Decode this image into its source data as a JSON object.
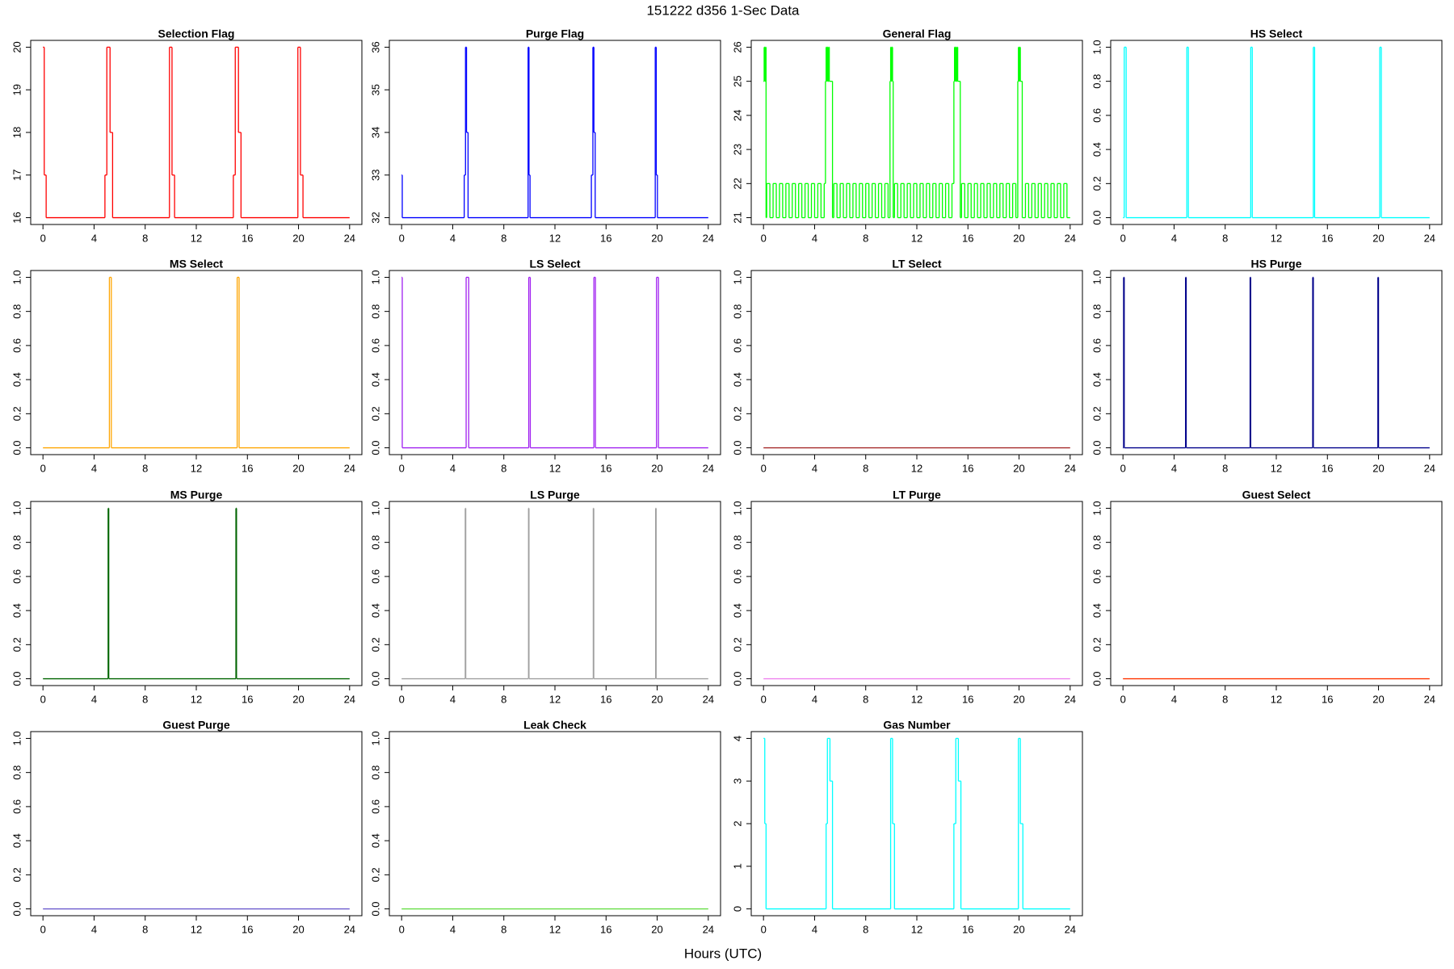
{
  "title": "151222   d356   1-Sec Data",
  "x_label": "Hours (UTC)",
  "chart_data": [
    {
      "type": "step",
      "title": "Selection Flag",
      "color": "#ff0000",
      "xlim": [
        -0.96,
        24.96
      ],
      "xticks": [
        0,
        4,
        8,
        12,
        16,
        20,
        24
      ],
      "ylim": [
        15.84,
        20.16
      ],
      "yticks": [
        16,
        17,
        18,
        19,
        20
      ],
      "x": [
        0,
        0.1,
        0.25,
        4.85,
        5.0,
        5.25,
        5.45,
        9.9,
        10.1,
        10.3,
        14.9,
        15.05,
        15.3,
        15.5,
        19.95,
        20.15,
        20.35,
        24
      ],
      "values": [
        20,
        17,
        16,
        17,
        20,
        18,
        16,
        20,
        17,
        16,
        17,
        20,
        18,
        16,
        20,
        17,
        16,
        16
      ]
    },
    {
      "type": "step",
      "title": "Purge Flag",
      "color": "#0000ff",
      "xlim": [
        -0.96,
        24.96
      ],
      "xticks": [
        0,
        4,
        8,
        12,
        16,
        20,
        24
      ],
      "ylim": [
        31.84,
        36.16
      ],
      "yticks": [
        32,
        33,
        34,
        35,
        36
      ],
      "x": [
        0,
        0.05,
        4.9,
        5.0,
        5.08,
        5.2,
        9.9,
        9.97,
        10.05,
        14.85,
        14.97,
        15.05,
        15.15,
        19.85,
        19.93,
        20.02,
        24
      ],
      "values": [
        33,
        32,
        33,
        36,
        34,
        32,
        36,
        33,
        32,
        33,
        36,
        34,
        32,
        36,
        33,
        32,
        32
      ]
    },
    {
      "type": "step",
      "title": "General Flag",
      "color": "#00ff00",
      "xlim": [
        -0.96,
        24.96
      ],
      "xticks": [
        0,
        4,
        8,
        12,
        16,
        20,
        24
      ],
      "ylim": [
        20.8,
        26.2
      ],
      "yticks": [
        21,
        22,
        23,
        24,
        25,
        26
      ],
      "x": [
        0,
        0.05,
        0.1,
        0.15,
        0.2,
        0.25,
        0.5,
        0.75,
        1,
        1.25,
        1.5,
        1.75,
        2,
        2.25,
        2.5,
        2.75,
        3,
        3.25,
        3.5,
        3.75,
        4,
        4.25,
        4.5,
        4.75,
        4.85,
        4.9,
        4.95,
        5.0,
        5.05,
        5.1,
        5.15,
        5.4,
        5.5,
        5.75,
        6,
        6.25,
        6.5,
        6.75,
        7,
        7.25,
        7.5,
        7.75,
        8,
        8.25,
        8.5,
        8.75,
        9,
        9.25,
        9.5,
        9.75,
        9.9,
        9.95,
        10,
        10.05,
        10.1,
        10.15,
        10.25,
        10.5,
        10.75,
        11,
        11.25,
        11.5,
        11.75,
        12,
        12.25,
        12.5,
        12.75,
        13,
        13.25,
        13.5,
        13.75,
        14,
        14.25,
        14.5,
        14.75,
        14.9,
        14.95,
        15,
        15.05,
        15.1,
        15.15,
        15.2,
        15.4,
        15.5,
        15.75,
        16,
        16.25,
        16.5,
        16.75,
        17,
        17.25,
        17.5,
        17.75,
        18,
        18.25,
        18.5,
        18.75,
        19,
        19.25,
        19.5,
        19.75,
        19.9,
        19.95,
        20,
        20.05,
        20.1,
        20.25,
        20.5,
        20.75,
        21,
        21.25,
        21.5,
        21.75,
        22,
        22.25,
        22.5,
        22.75,
        23,
        23.25,
        23.5,
        23.75,
        24
      ],
      "values": [
        25,
        26,
        25,
        26,
        21,
        22,
        21,
        22,
        21,
        22,
        21,
        22,
        21,
        22,
        21,
        22,
        21,
        22,
        21,
        22,
        21,
        22,
        21,
        22,
        25,
        26,
        25,
        26,
        25,
        26,
        25,
        21,
        22,
        21,
        22,
        21,
        22,
        21,
        22,
        21,
        22,
        21,
        22,
        21,
        22,
        21,
        22,
        21,
        22,
        21,
        25,
        26,
        25,
        26,
        25,
        21,
        22,
        21,
        22,
        21,
        22,
        21,
        22,
        21,
        22,
        21,
        22,
        21,
        22,
        21,
        22,
        21,
        22,
        21,
        22,
        25,
        26,
        25,
        26,
        25,
        26,
        25,
        21,
        22,
        21,
        22,
        21,
        22,
        21,
        22,
        21,
        22,
        21,
        22,
        21,
        22,
        21,
        22,
        21,
        22,
        21,
        25,
        26,
        25,
        26,
        25,
        21,
        22,
        21,
        22,
        21,
        22,
        21,
        22,
        21,
        22,
        21,
        22,
        21,
        22,
        21,
        21
      ]
    },
    {
      "type": "step",
      "title": "HS Select",
      "color": "#00ffff",
      "xlim": [
        -0.96,
        24.96
      ],
      "xticks": [
        0,
        4,
        8,
        12,
        16,
        20,
        24
      ],
      "ylim": [
        -0.04,
        1.04
      ],
      "yticks": [
        {
          "value": 0,
          "label": "0.0"
        },
        0.2,
        0.4,
        0.6,
        0.8,
        {
          "value": 1,
          "label": "1.0"
        }
      ],
      "x": [
        0,
        0.1,
        0.25,
        5.0,
        5.12,
        10.0,
        10.12,
        14.9,
        15.0,
        20.1,
        20.22,
        24
      ],
      "values": [
        0,
        1,
        0,
        1,
        0,
        1,
        0,
        1,
        0,
        1,
        0,
        0
      ]
    },
    {
      "type": "step",
      "title": "MS Select",
      "color": "#ffa500",
      "xlim": [
        -0.96,
        24.96
      ],
      "xticks": [
        0,
        4,
        8,
        12,
        16,
        20,
        24
      ],
      "ylim": [
        -0.04,
        1.04
      ],
      "yticks": [
        {
          "value": 0,
          "label": "0.0"
        },
        0.2,
        0.4,
        0.6,
        0.8,
        {
          "value": 1,
          "label": "1.0"
        }
      ],
      "x": [
        0,
        5.2,
        5.35,
        15.2,
        15.35,
        24
      ],
      "values": [
        0,
        1,
        0,
        1,
        0,
        0
      ]
    },
    {
      "type": "step",
      "title": "LS Select",
      "color": "#a020f0",
      "xlim": [
        -0.96,
        24.96
      ],
      "xticks": [
        0,
        4,
        8,
        12,
        16,
        20,
        24
      ],
      "ylim": [
        -0.04,
        1.04
      ],
      "yticks": [
        {
          "value": 0,
          "label": "0.0"
        },
        0.2,
        0.4,
        0.6,
        0.8,
        {
          "value": 1,
          "label": "1.0"
        }
      ],
      "x": [
        0,
        0.05,
        5.05,
        5.25,
        9.95,
        10.07,
        15.05,
        15.17,
        19.95,
        20.1,
        24
      ],
      "values": [
        1,
        0,
        1,
        0,
        1,
        0,
        1,
        0,
        1,
        0,
        0
      ]
    },
    {
      "type": "step",
      "title": "LT Select",
      "color": "#a52a2a",
      "xlim": [
        -0.96,
        24.96
      ],
      "xticks": [
        0,
        4,
        8,
        12,
        16,
        20,
        24
      ],
      "ylim": [
        -0.04,
        1.04
      ],
      "yticks": [
        {
          "value": 0,
          "label": "0.0"
        },
        0.2,
        0.4,
        0.6,
        0.8,
        {
          "value": 1,
          "label": "1.0"
        }
      ],
      "x": [
        0,
        24
      ],
      "values": [
        0,
        0
      ]
    },
    {
      "type": "step",
      "title": "HS Purge",
      "color": "#00008b",
      "xlim": [
        -0.96,
        24.96
      ],
      "xticks": [
        0,
        4,
        8,
        12,
        16,
        20,
        24
      ],
      "ylim": [
        -0.04,
        1.04
      ],
      "yticks": [
        {
          "value": 0,
          "label": "0.0"
        },
        0.2,
        0.4,
        0.6,
        0.8,
        {
          "value": 1,
          "label": "1.0"
        }
      ],
      "x": [
        0,
        0.05,
        0.1,
        4.9,
        4.95,
        9.95,
        10.0,
        14.85,
        14.9,
        19.95,
        20.0,
        24
      ],
      "values": [
        0,
        1,
        0,
        1,
        0,
        1,
        0,
        1,
        0,
        1,
        0,
        0
      ]
    },
    {
      "type": "step",
      "title": "MS Purge",
      "color": "#006400",
      "xlim": [
        -0.96,
        24.96
      ],
      "xticks": [
        0,
        4,
        8,
        12,
        16,
        20,
        24
      ],
      "ylim": [
        -0.04,
        1.04
      ],
      "yticks": [
        {
          "value": 0,
          "label": "0.0"
        },
        0.2,
        0.4,
        0.6,
        0.8,
        {
          "value": 1,
          "label": "1.0"
        }
      ],
      "x": [
        0,
        5.1,
        5.15,
        15.1,
        15.15,
        24
      ],
      "values": [
        0,
        1,
        0,
        1,
        0,
        0
      ]
    },
    {
      "type": "step",
      "title": "LS Purge",
      "color": "#a0a0a0",
      "xlim": [
        -0.96,
        24.96
      ],
      "xticks": [
        0,
        4,
        8,
        12,
        16,
        20,
        24
      ],
      "ylim": [
        -0.04,
        1.04
      ],
      "yticks": [
        {
          "value": 0,
          "label": "0.0"
        },
        0.2,
        0.4,
        0.6,
        0.8,
        {
          "value": 1,
          "label": "1.0"
        }
      ],
      "x": [
        0,
        4.98,
        5.02,
        9.93,
        9.97,
        15.0,
        15.04,
        19.88,
        19.92,
        24
      ],
      "values": [
        0,
        1,
        0,
        1,
        0,
        1,
        0,
        1,
        0,
        0
      ]
    },
    {
      "type": "step",
      "title": "LT Purge",
      "color": "#ee82ee",
      "xlim": [
        -0.96,
        24.96
      ],
      "xticks": [
        0,
        4,
        8,
        12,
        16,
        20,
        24
      ],
      "ylim": [
        -0.04,
        1.04
      ],
      "yticks": [
        {
          "value": 0,
          "label": "0.0"
        },
        0.2,
        0.4,
        0.6,
        0.8,
        {
          "value": 1,
          "label": "1.0"
        }
      ],
      "x": [
        0,
        24
      ],
      "values": [
        0,
        0
      ]
    },
    {
      "type": "step",
      "title": "Guest Select",
      "color": "#ff3300",
      "xlim": [
        -0.96,
        24.96
      ],
      "xticks": [
        0,
        4,
        8,
        12,
        16,
        20,
        24
      ],
      "ylim": [
        -0.04,
        1.04
      ],
      "yticks": [
        {
          "value": 0,
          "label": "0.0"
        },
        0.2,
        0.4,
        0.6,
        0.8,
        {
          "value": 1,
          "label": "1.0"
        }
      ],
      "x": [
        0,
        24
      ],
      "values": [
        0,
        0
      ]
    },
    {
      "type": "step",
      "title": "Guest Purge",
      "color": "#6a5acd",
      "xlim": [
        -0.96,
        24.96
      ],
      "xticks": [
        0,
        4,
        8,
        12,
        16,
        20,
        24
      ],
      "ylim": [
        -0.04,
        1.04
      ],
      "yticks": [
        {
          "value": 0,
          "label": "0.0"
        },
        0.2,
        0.4,
        0.6,
        0.8,
        {
          "value": 1,
          "label": "1.0"
        }
      ],
      "x": [
        0,
        24
      ],
      "values": [
        0,
        0
      ]
    },
    {
      "type": "step",
      "title": "Leak Check",
      "color": "#66dd44",
      "xlim": [
        -0.96,
        24.96
      ],
      "xticks": [
        0,
        4,
        8,
        12,
        16,
        20,
        24
      ],
      "ylim": [
        -0.04,
        1.04
      ],
      "yticks": [
        {
          "value": 0,
          "label": "0.0"
        },
        0.2,
        0.4,
        0.6,
        0.8,
        {
          "value": 1,
          "label": "1.0"
        }
      ],
      "x": [
        0,
        24
      ],
      "values": [
        0,
        0
      ]
    },
    {
      "type": "step",
      "title": "Gas Number",
      "color": "#00ffff",
      "xlim": [
        -0.96,
        24.96
      ],
      "xticks": [
        0,
        4,
        8,
        12,
        16,
        20,
        24
      ],
      "ylim": [
        -0.16,
        4.16
      ],
      "yticks": [
        0,
        1,
        2,
        3,
        4
      ],
      "x": [
        0,
        0.1,
        0.2,
        4.9,
        5.0,
        5.2,
        5.4,
        9.95,
        10.1,
        10.25,
        14.9,
        15.05,
        15.25,
        15.45,
        19.95,
        20.1,
        20.3,
        24
      ],
      "values": [
        4,
        2,
        0,
        2,
        4,
        3,
        0,
        4,
        2,
        0,
        2,
        4,
        3,
        0,
        4,
        2,
        0,
        0
      ]
    }
  ]
}
